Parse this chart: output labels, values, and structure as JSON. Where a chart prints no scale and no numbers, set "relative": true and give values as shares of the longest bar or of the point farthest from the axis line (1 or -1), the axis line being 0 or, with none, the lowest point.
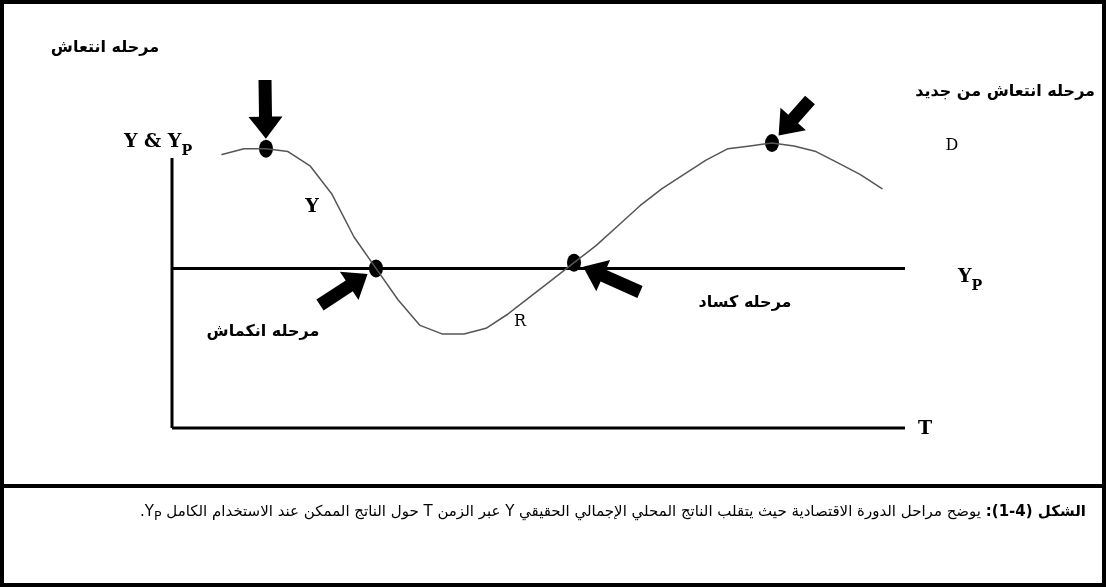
{
  "chart_data": {
    "type": "line",
    "relative": true,
    "categories": [
      null,
      null,
      null,
      null,
      null,
      null,
      null,
      null,
      null,
      null,
      null,
      null,
      null,
      null,
      null,
      null,
      null,
      null,
      null,
      null,
      null,
      null,
      null,
      null,
      null,
      null,
      null,
      null,
      null,
      null,
      null
    ],
    "series": [
      {
        "name": "Y",
        "color": "#555555",
        "values": [
          0.96,
          0.98,
          0.98,
          0.97,
          0.92,
          0.82,
          0.67,
          0.56,
          0.45,
          0.36,
          0.33,
          0.33,
          0.35,
          0.4,
          0.46,
          0.52,
          0.58,
          0.64,
          0.71,
          0.78,
          0.84,
          0.89,
          0.94,
          0.98,
          0.99,
          1,
          0.99,
          0.97,
          0.93,
          0.89,
          0.84
        ]
      }
    ],
    "ylabel": "Y & Y$_{P}$",
    "xlabel": "T",
    "ref_lines": [
      {
        "axis": "y",
        "value": 0.56,
        "label": "Y$_{P}$",
        "color": "#000000"
      }
    ],
    "annotations": [
      "مرحله انتعاش",
      "مرحله انتعاش من جديد",
      "مرحله انکماش",
      {
        "text": "مرحله کساد",
        "y": 0.58
      },
      "D",
      "R",
      "**الشكل (4-1):** يوضح مراحل الدورة الاقتصادية حيث يتقلب الناتج المحلي الإجمالي الحقيقي Y عبر الزمن T حول الناتج الممكن عند الاستخدام الكامل Y$_{P}$."
    ]
  }
}
